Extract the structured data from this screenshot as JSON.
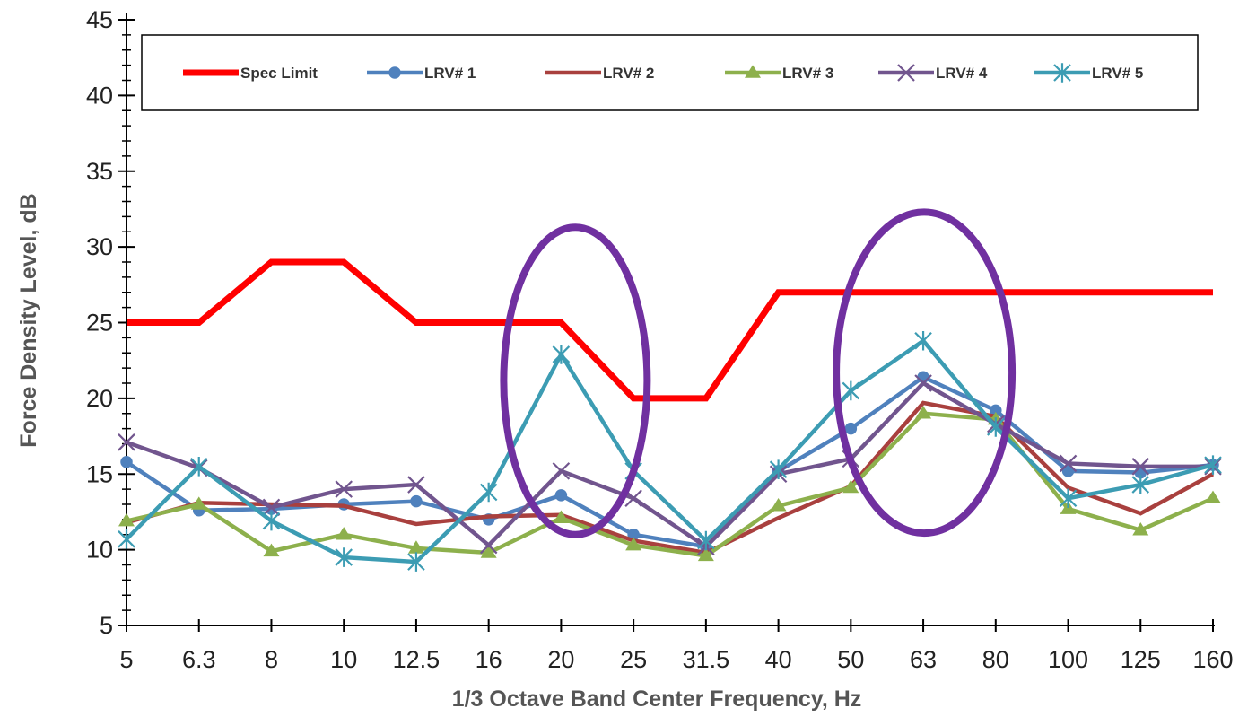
{
  "chart_data": {
    "type": "line",
    "xlabel": "1/3 Octave Band Center Frequency, Hz",
    "ylabel": "Force Density Level, dB",
    "ylim": [
      5,
      45
    ],
    "yticks": [
      5,
      10,
      15,
      20,
      25,
      30,
      35,
      40,
      45
    ],
    "categories": [
      "5",
      "6.3",
      "8",
      "10",
      "12.5",
      "16",
      "20",
      "25",
      "31.5",
      "40",
      "50",
      "63",
      "80",
      "100",
      "125",
      "160"
    ],
    "grid": false,
    "legend_position": "top",
    "series": [
      {
        "name": "Spec Limit",
        "color": "#ff0000",
        "marker": "none",
        "values": [
          25,
          25,
          29,
          29,
          25,
          25,
          25,
          20,
          20,
          27,
          27,
          27,
          27,
          27,
          27,
          27
        ]
      },
      {
        "name": "LRV# 1",
        "color": "#4f81bd",
        "marker": "circle",
        "values": [
          15.8,
          12.6,
          12.7,
          13.0,
          13.2,
          12.0,
          13.6,
          11.0,
          10.2,
          15.2,
          18.0,
          21.4,
          19.2,
          15.2,
          15.1,
          15.6
        ]
      },
      {
        "name": "LRV# 2",
        "color": "#a9403e",
        "marker": "none",
        "values": [
          11.8,
          13.1,
          13.0,
          12.9,
          11.7,
          12.2,
          12.3,
          10.6,
          9.8,
          12.1,
          14.2,
          19.7,
          18.8,
          14.1,
          12.4,
          15.0
        ]
      },
      {
        "name": "LRV# 3",
        "color": "#8db04c",
        "marker": "triangle",
        "values": [
          11.9,
          13.0,
          9.9,
          11.0,
          10.1,
          9.8,
          12.1,
          10.3,
          9.6,
          12.9,
          14.1,
          19.0,
          18.6,
          12.7,
          11.3,
          13.4
        ]
      },
      {
        "name": "LRV# 4",
        "color": "#71558e",
        "marker": "x",
        "values": [
          17.1,
          15.4,
          12.8,
          14.0,
          14.3,
          10.3,
          15.2,
          13.4,
          10.2,
          15.0,
          16.0,
          21.0,
          18.3,
          15.7,
          15.5,
          15.5
        ]
      },
      {
        "name": "LRV# 5",
        "color": "#3c9cb3",
        "marker": "star",
        "values": [
          10.7,
          15.5,
          11.9,
          9.5,
          9.2,
          13.8,
          22.9,
          15.2,
          10.6,
          15.3,
          20.5,
          23.8,
          18.1,
          13.4,
          14.3,
          15.6
        ]
      }
    ],
    "annotations": [
      {
        "type": "ellipse",
        "color": "#7030a0",
        "center_category": "20",
        "y_from": 11,
        "y_to": 31.3
      },
      {
        "type": "ellipse",
        "color": "#7030a0",
        "center_category": "63",
        "y_from": 11.1,
        "y_to": 32.3
      }
    ]
  }
}
